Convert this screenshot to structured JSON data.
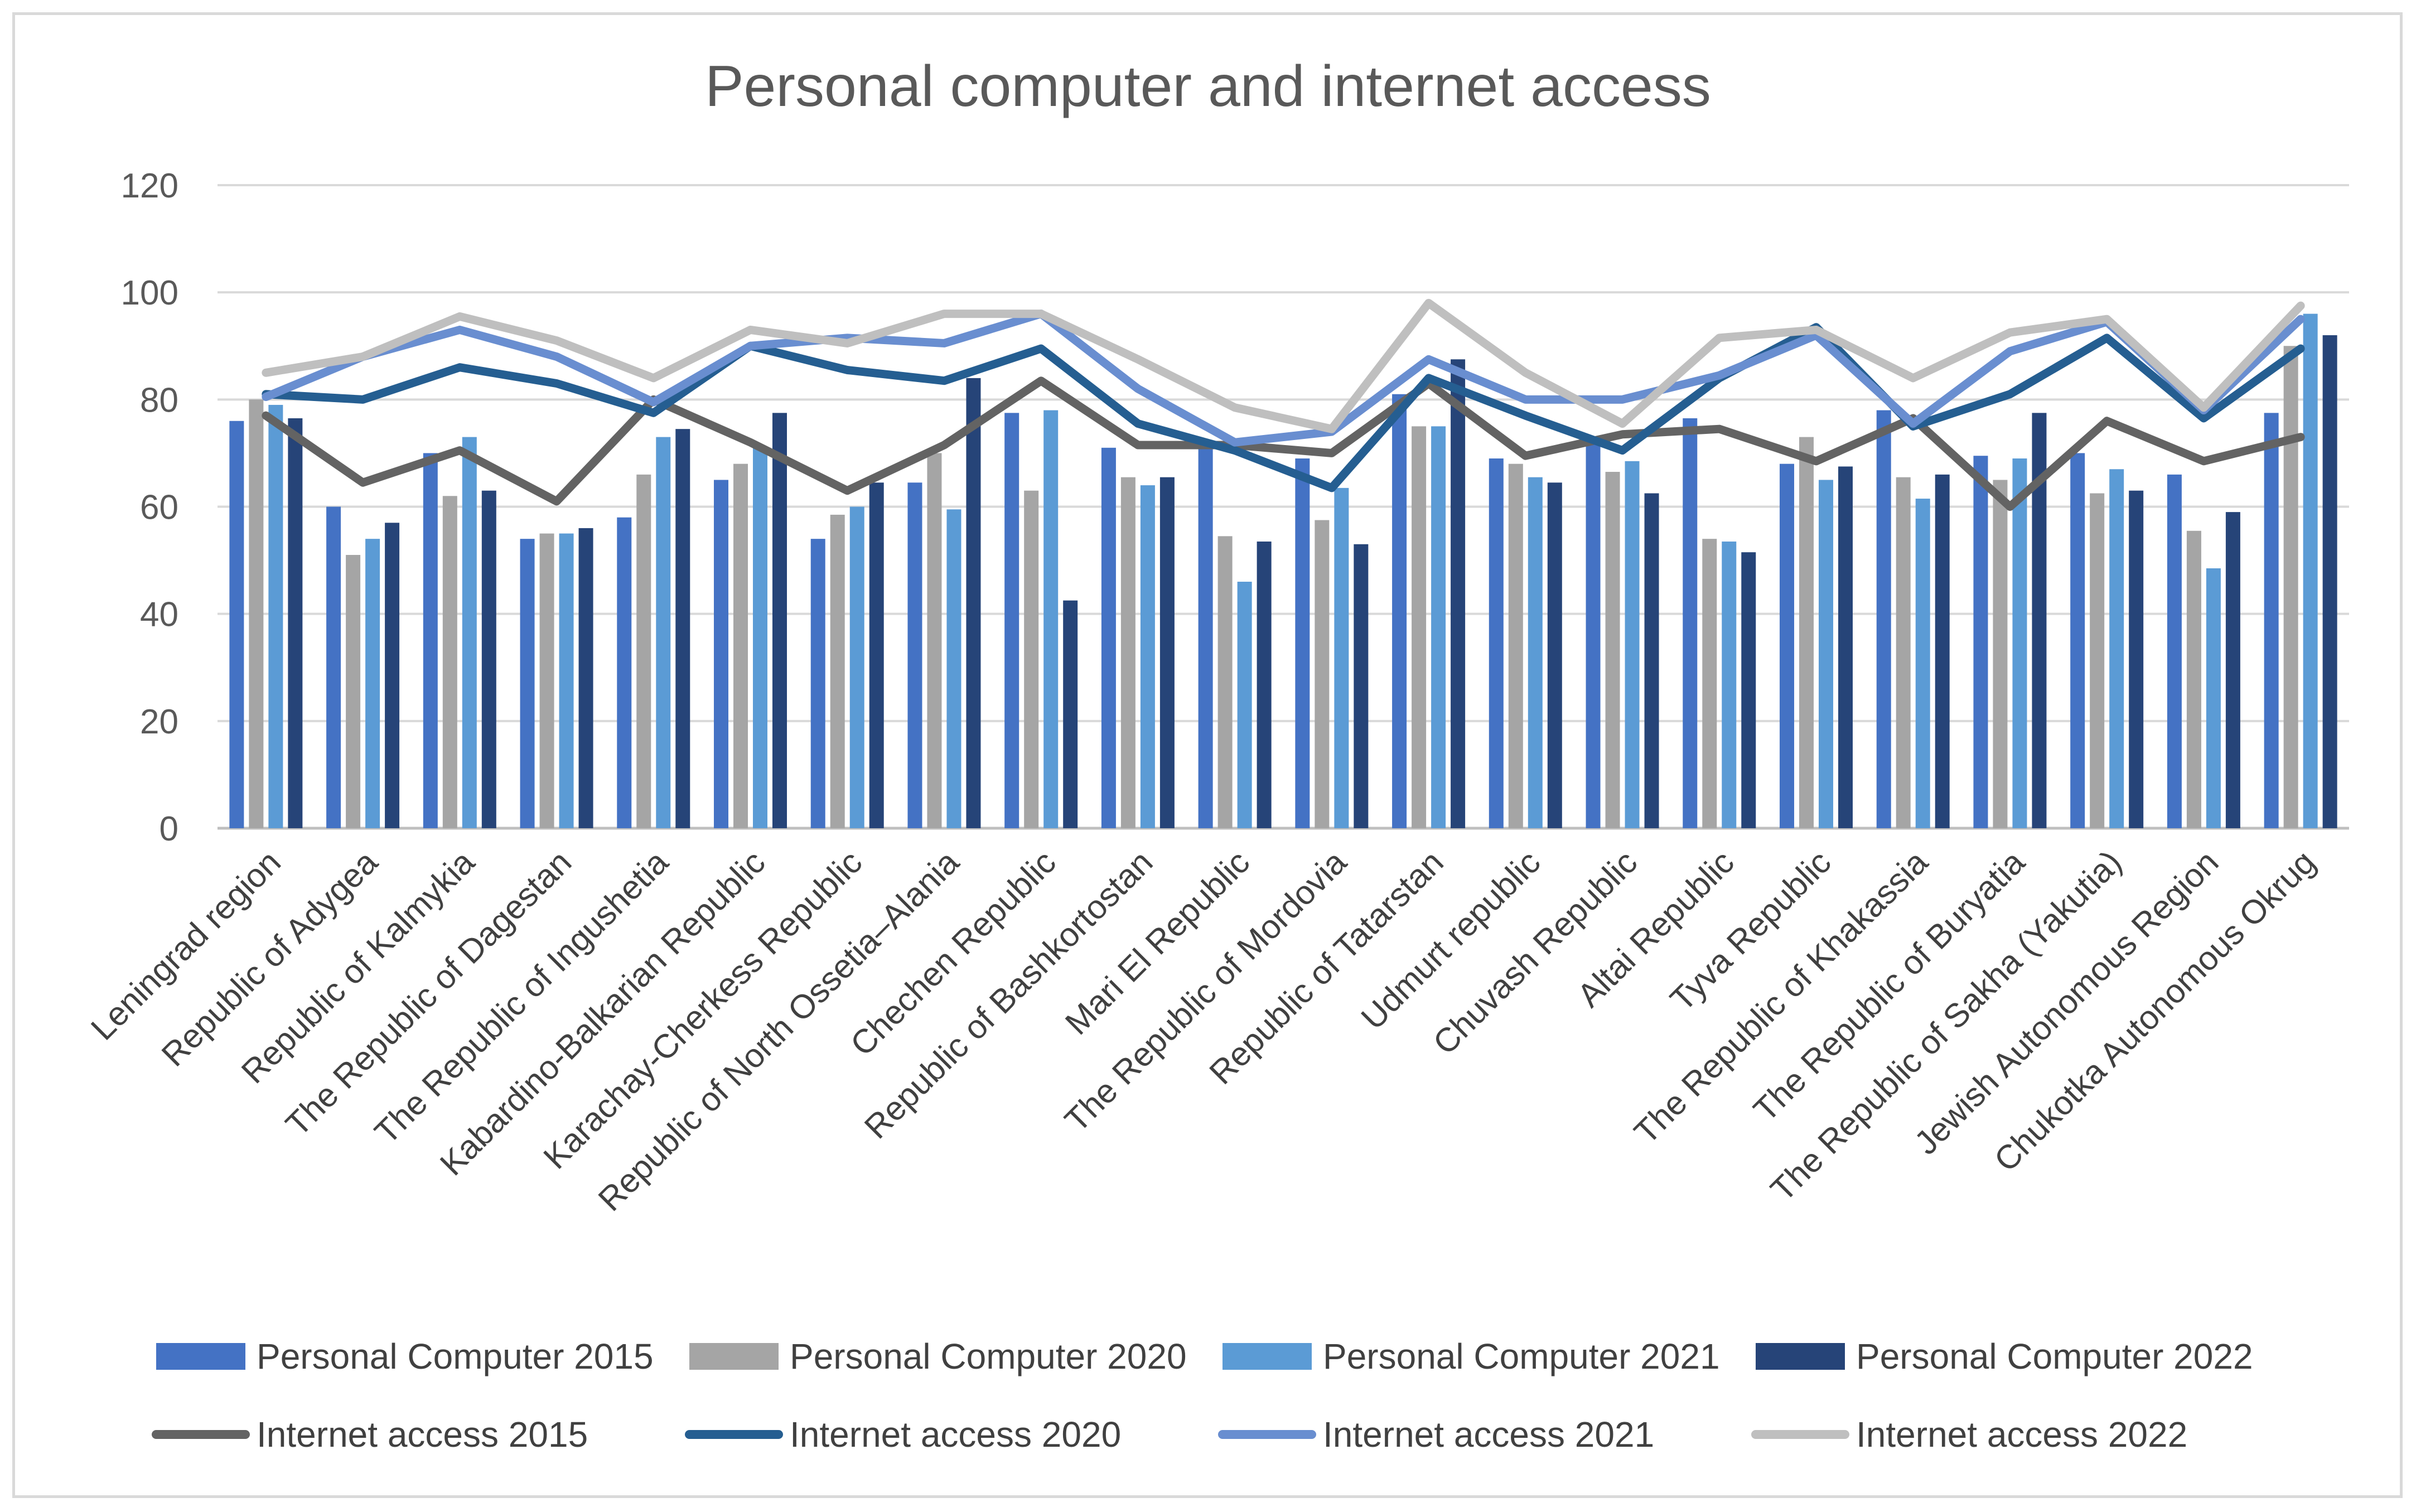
{
  "chart_data": {
    "type": "bar",
    "title": "Personal computer and internet access",
    "xlabel": "",
    "ylabel": "",
    "ylim": [
      0,
      120
    ],
    "yticks": [
      0,
      20,
      40,
      60,
      80,
      100,
      120
    ],
    "grid": true,
    "legend_position": "bottom",
    "categories": [
      "Leningrad region",
      "Republic of Adygea",
      "Republic of Kalmykia",
      "The Republic of Dagestan",
      "The Republic of Ingushetia",
      "Kabardino-Balkarian Republic",
      "Karachay-Cherkess Republic",
      "Republic of North Ossetia–Alania",
      "Chechen Republic",
      "Republic of Bashkortostan",
      "Mari El Republic",
      "The Republic of Mordovia",
      "Republic of Tatarstan",
      "Udmurt republic",
      "Chuvash Republic",
      "Altai Republic",
      "Tyva Republic",
      "The Republic of Khakassia",
      "The Republic of Buryatia",
      "The Republic of Sakha (Yakutia)",
      "Jewish Autonomous Region",
      "Chukotka Autonomous Okrug"
    ],
    "bar_series": [
      {
        "name": "Personal Computer 2015",
        "color": "#4472c4",
        "values": [
          76,
          60,
          70,
          54,
          58,
          65,
          54,
          64.5,
          77.5,
          71,
          72,
          69,
          81,
          69,
          72,
          76.5,
          68,
          78,
          69.5,
          70,
          66,
          77.5
        ]
      },
      {
        "name": "Personal Computer 2020",
        "color": "#a5a5a5",
        "values": [
          80,
          51,
          62,
          55,
          66,
          68,
          58.5,
          70,
          63,
          65.5,
          54.5,
          57.5,
          75,
          68,
          66.5,
          54,
          73,
          65.5,
          65,
          62.5,
          55.5,
          90
        ]
      },
      {
        "name": "Personal Computer 2021",
        "color": "#5b9bd5",
        "values": [
          79,
          54,
          73,
          55,
          73,
          71,
          60,
          59.5,
          78,
          64,
          46,
          63.5,
          75,
          65.5,
          68.5,
          53.5,
          65,
          61.5,
          69,
          67,
          48.5,
          96
        ]
      },
      {
        "name": "Personal Computer 2022",
        "color": "#264478",
        "values": [
          76.5,
          57,
          63,
          56,
          74.5,
          77.5,
          64.5,
          84,
          42.5,
          65.5,
          53.5,
          53,
          87.5,
          64.5,
          62.5,
          51.5,
          67.5,
          66,
          77.5,
          63,
          59,
          92
        ]
      }
    ],
    "line_series": [
      {
        "name": "Internet access 2015",
        "color": "#636363",
        "values": [
          77,
          64.5,
          70.5,
          61,
          80,
          72,
          63,
          71.5,
          83.5,
          71.5,
          71.5,
          70,
          83,
          69.5,
          73.5,
          74.5,
          68.5,
          76.5,
          60,
          76,
          68.5,
          73
        ]
      },
      {
        "name": "Internet access 2020",
        "color": "#255e91",
        "values": [
          81,
          80,
          86,
          83,
          77.5,
          90,
          85.5,
          83.5,
          89.5,
          75.5,
          70.5,
          63.5,
          84,
          77,
          70.5,
          84,
          93.5,
          75,
          81,
          91.5,
          76.5,
          89.5
        ]
      },
      {
        "name": "Internet access 2021",
        "color": "#698ed0",
        "values": [
          80.5,
          88,
          93,
          88,
          79.5,
          90,
          91.5,
          90.5,
          96,
          82,
          72,
          74,
          87.5,
          80,
          80,
          84.5,
          92,
          75.5,
          89,
          94.5,
          78,
          95
        ]
      },
      {
        "name": "Internet access 2022",
        "color": "#bfbfbf",
        "values": [
          85,
          88,
          95.5,
          91,
          84,
          93,
          90.5,
          96,
          96,
          87.5,
          78.5,
          74.5,
          98,
          85,
          75.5,
          91.5,
          93,
          84,
          92.5,
          95,
          78.5,
          97.5
        ]
      }
    ]
  }
}
